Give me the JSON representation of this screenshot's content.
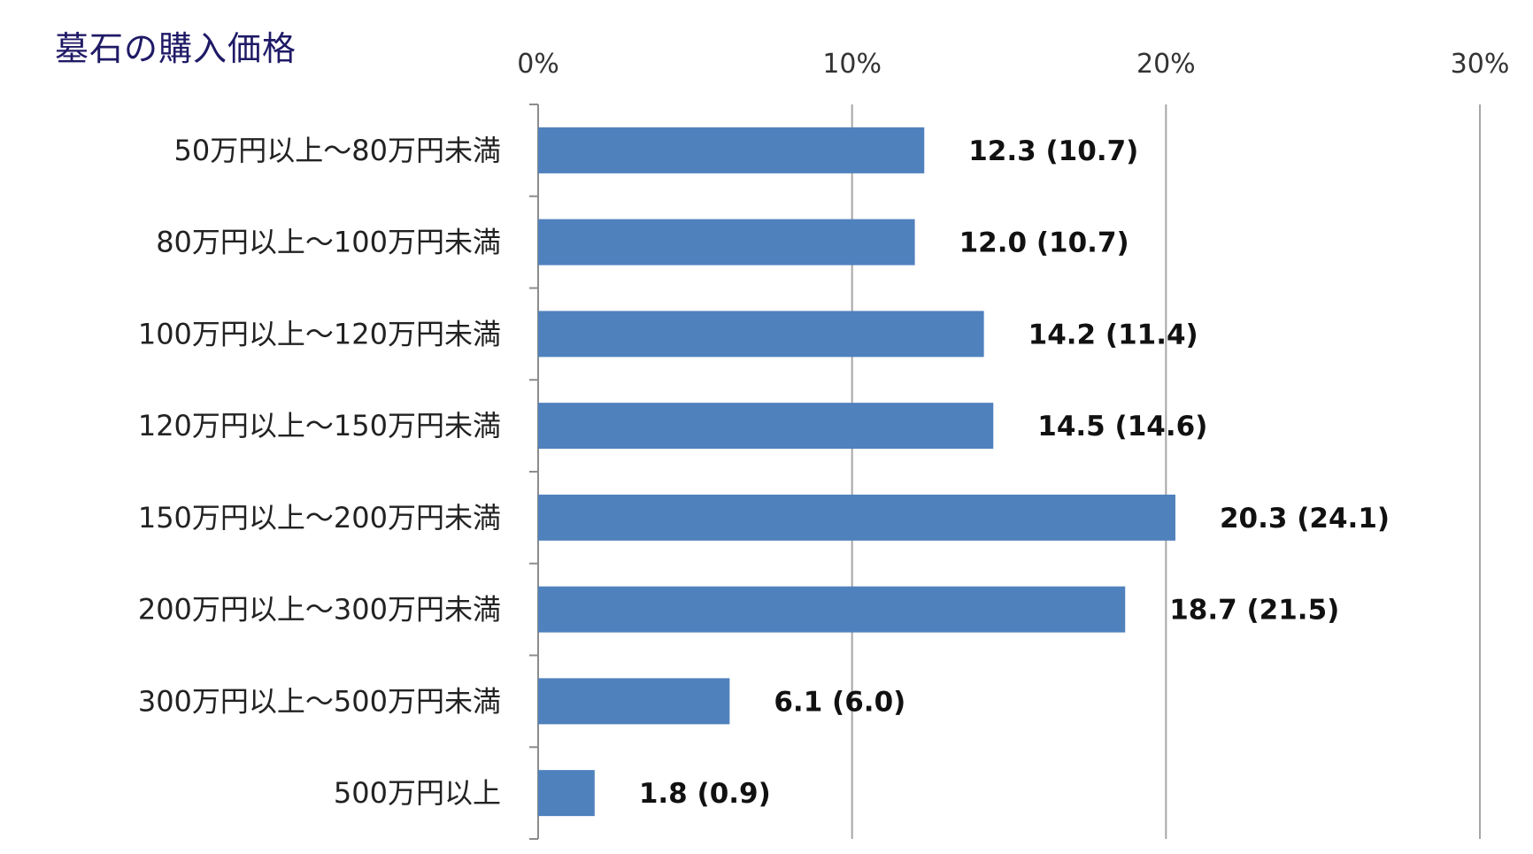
{
  "chart_data": {
    "type": "bar",
    "orientation": "horizontal",
    "title": "墓石の購入価格",
    "categories": [
      "50万円以上～80万円未満",
      "80万円以上～100万円未満",
      "100万円以上～120万円未満",
      "120万円以上～150万円未満",
      "150万円以上～200万円未満",
      "200万円以上～300万円未満",
      "300万円以上～500万円未満",
      "500万円以上"
    ],
    "values": [
      12.3,
      12.0,
      14.2,
      14.5,
      20.3,
      18.7,
      6.1,
      1.8
    ],
    "previous_values": [
      10.7,
      10.7,
      11.4,
      14.6,
      24.1,
      21.5,
      6.0,
      0.9
    ],
    "data_labels": [
      "12.3 (10.7)",
      "12.0 (10.7)",
      "14.2 (11.4)",
      "14.5 (14.6)",
      "20.3 (24.1)",
      "18.7 (21.5)",
      "6.1 (6.0)",
      "1.8 (0.9)"
    ],
    "xlim": [
      0,
      30
    ],
    "x_ticks": [
      0,
      10,
      20,
      30
    ],
    "x_tick_labels": [
      "0%",
      "10%",
      "20%",
      "30%"
    ],
    "x_axis_position": "top",
    "grid": true,
    "bar_color": "#4f81bd",
    "grid_color": "#a6a6a6",
    "title_color": "#1f1a66"
  }
}
